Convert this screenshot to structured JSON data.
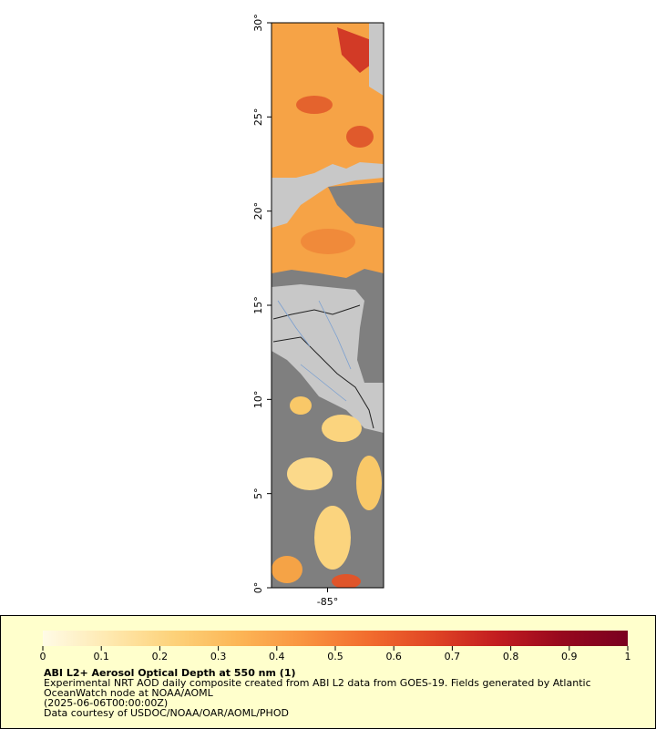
{
  "chart_data": {
    "type": "map",
    "ylim": [
      0,
      30
    ],
    "yticks": [
      {
        "value": 0,
        "label": "0°"
      },
      {
        "value": 5,
        "label": "5°"
      },
      {
        "value": 10,
        "label": "10°"
      },
      {
        "value": 15,
        "label": "15°"
      },
      {
        "value": 20,
        "label": "20°"
      },
      {
        "value": 25,
        "label": "25°"
      },
      {
        "value": 30,
        "label": "30°"
      }
    ],
    "xlim": [
      -88,
      -82
    ],
    "xticks": [
      {
        "value": -85,
        "label": "-85°"
      }
    ],
    "colorbar": {
      "lim": [
        0,
        1
      ],
      "ticks": [
        0,
        0.1,
        0.2,
        0.3,
        0.4,
        0.5,
        0.6,
        0.7,
        0.8,
        0.9,
        1
      ],
      "colors": [
        "#fffbe6",
        "#fee9b0",
        "#fdd27a",
        "#fcb656",
        "#f99440",
        "#f26d2e",
        "#e04525",
        "#c21c20",
        "#96081e",
        "#7a0020"
      ]
    },
    "title": "ABI L2+ Aerosol Optical Depth at 550 nm (1)",
    "caption": [
      "Experimental NRT AOD daily composite created from ABI L2 data from GOES-19. Fields generated by Atlantic",
      "OceanWatch node at NOAA/AOML",
      "(2025-06-06T00:00:00Z)",
      "Data courtesy of USDOC/NOAA/OAR/AOML/PHOD"
    ]
  }
}
